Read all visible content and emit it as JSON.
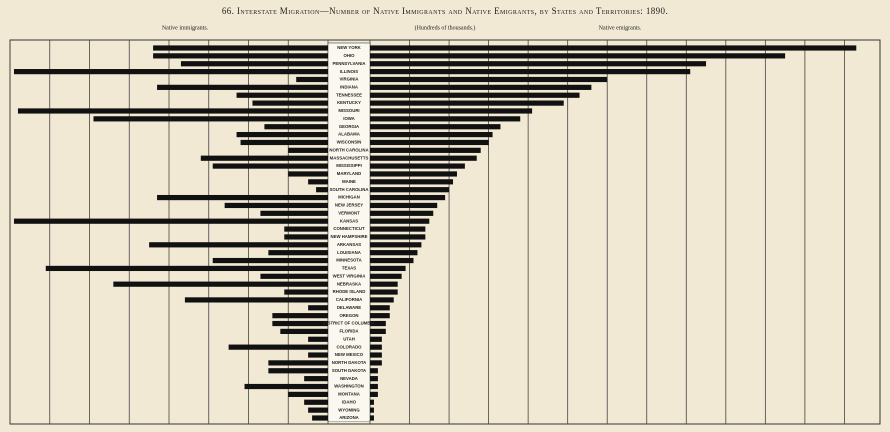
{
  "chart_data": {
    "type": "butterfly",
    "title": "66. Interstate Migration—Number of Native Immigrants and Native Emigrants, by States and Territories: 1890.",
    "unit_label": "(Hundreds of thousands.)",
    "categories": [
      "NEW YORK",
      "OHIO",
      "PENNSYLVANIA",
      "ILLINOIS",
      "VIRGINIA",
      "INDIANA",
      "TENNESSEE",
      "KENTUCKY",
      "MISSOURI",
      "IOWA",
      "GEORGIA",
      "ALABAMA",
      "WISCONSIN",
      "NORTH CAROLINA",
      "MASSACHUSETTS",
      "MISSISSIPPI",
      "MARYLAND",
      "MAINE",
      "SOUTH CAROLINA",
      "MICHIGAN",
      "NEW JERSEY",
      "VERMONT",
      "KANSAS",
      "CONNECTICUT",
      "NEW HAMPSHIRE",
      "ARKANSAS",
      "LOUISIANA",
      "MINNESOTA",
      "TEXAS",
      "WEST VIRGINIA",
      "NEBRASKA",
      "RHODE ISLAND",
      "CALIFORNIA",
      "DELAWARE",
      "OREGON",
      "DISTRICT OF COLUMBIA",
      "FLORIDA",
      "UTAH",
      "COLORADO",
      "NEW MEXICO",
      "NORTH DAKOTA",
      "SOUTH DAKOTA",
      "NEVADA",
      "WASHINGTON",
      "MONTANA",
      "IDAHO",
      "WYOMING",
      "ARIZONA"
    ],
    "series": [
      {
        "name": "Native immigrants.",
        "color": "#111111",
        "xlim": [
          0,
          8
        ],
        "xticks": [
          0,
          1,
          2,
          3,
          4,
          5,
          6,
          7,
          8
        ],
        "values": [
          4.4,
          4.4,
          3.7,
          7.9,
          0.8,
          4.3,
          2.3,
          1.9,
          7.8,
          5.9,
          1.6,
          2.3,
          2.2,
          1.0,
          3.2,
          2.9,
          1.0,
          0.5,
          0.3,
          4.3,
          2.6,
          1.7,
          7.9,
          1.1,
          1.1,
          4.5,
          1.5,
          2.9,
          7.1,
          1.7,
          5.4,
          1.1,
          3.6,
          0.5,
          1.4,
          1.4,
          1.2,
          0.5,
          2.5,
          0.5,
          1.5,
          1.5,
          0.6,
          2.1,
          1.0,
          0.6,
          0.5,
          0.4
        ]
      },
      {
        "name": "Native emigrants.",
        "color": "#111111",
        "xlim": [
          0,
          12.9
        ],
        "xticks": [
          0,
          1,
          2,
          3,
          4,
          5,
          6,
          7,
          8,
          9,
          10,
          11,
          12
        ],
        "values": [
          12.3,
          10.5,
          8.5,
          8.1,
          6.0,
          5.6,
          5.3,
          4.9,
          4.1,
          3.8,
          3.3,
          3.1,
          3.0,
          2.8,
          2.7,
          2.4,
          2.2,
          2.1,
          2.0,
          1.9,
          1.7,
          1.6,
          1.5,
          1.4,
          1.4,
          1.3,
          1.2,
          1.1,
          0.9,
          0.8,
          0.7,
          0.7,
          0.6,
          0.5,
          0.5,
          0.4,
          0.4,
          0.3,
          0.3,
          0.3,
          0.3,
          0.2,
          0.2,
          0.2,
          0.2,
          0.1,
          0.1,
          0.1
        ]
      }
    ]
  }
}
